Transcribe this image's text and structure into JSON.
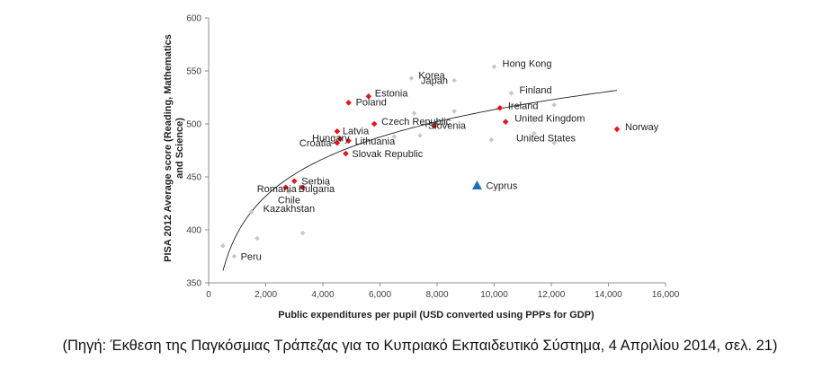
{
  "chart_data": {
    "type": "scatter",
    "xlabel": "Public expenditures per pupil (USD converted using PPPs for GDP)",
    "ylabel": "PISA 2012 Average score (Reading, Mathematics and Science)",
    "xlim": [
      0,
      16000
    ],
    "ylim": [
      350,
      600
    ],
    "xticks": [
      0,
      2000,
      4000,
      6000,
      8000,
      10000,
      12000,
      14000,
      16000
    ],
    "xtick_labels": [
      "0",
      "2,000",
      "4,000",
      "6,000",
      "8,000",
      "10,000",
      "12,000",
      "14,000",
      "16,000"
    ],
    "yticks": [
      350,
      400,
      450,
      500,
      550,
      600
    ],
    "ytick_labels": [
      "350",
      "400",
      "450",
      "500",
      "550",
      "600"
    ],
    "grid": false,
    "trendline": "logarithmic",
    "colors": {
      "highlight": "#e8151b",
      "other": "#c8c8c8",
      "cyprus": "#1f6fb5",
      "trend": "#222222"
    },
    "labeled_points": [
      {
        "label": "Hong Kong",
        "x": 10000,
        "y": 554,
        "kind": "other"
      },
      {
        "label": "Korea",
        "x": 7100,
        "y": 543,
        "kind": "other"
      },
      {
        "label": "Japan",
        "x": 8600,
        "y": 541,
        "kind": "other"
      },
      {
        "label": "Finland",
        "x": 10600,
        "y": 529,
        "kind": "other"
      },
      {
        "label": "Estonia",
        "x": 5600,
        "y": 526,
        "kind": "highlight"
      },
      {
        "label": "Poland",
        "x": 4900,
        "y": 520,
        "kind": "highlight"
      },
      {
        "label": "Ireland",
        "x": 10200,
        "y": 515,
        "kind": "highlight"
      },
      {
        "label": "Czech Republic",
        "x": 5800,
        "y": 500,
        "kind": "highlight"
      },
      {
        "label": "United Kingdom",
        "x": 10400,
        "y": 502,
        "kind": "highlight"
      },
      {
        "label": "Slovenia",
        "x": 7900,
        "y": 498,
        "kind": "highlight"
      },
      {
        "label": "Norway",
        "x": 14300,
        "y": 495,
        "kind": "highlight"
      },
      {
        "label": "United States",
        "x": 11400,
        "y": 491,
        "kind": "other"
      },
      {
        "label": "Latvia",
        "x": 4500,
        "y": 493,
        "kind": "highlight"
      },
      {
        "label": "Hungary",
        "x": 4600,
        "y": 486,
        "kind": "highlight"
      },
      {
        "label": "Lithuania",
        "x": 4900,
        "y": 484,
        "kind": "highlight"
      },
      {
        "label": "Croatia",
        "x": 4500,
        "y": 482,
        "kind": "highlight"
      },
      {
        "label": "Slovak Republic",
        "x": 4800,
        "y": 472,
        "kind": "highlight"
      },
      {
        "label": "Serbia",
        "x": 3000,
        "y": 446,
        "kind": "highlight"
      },
      {
        "label": "Romania",
        "x": 2700,
        "y": 440,
        "kind": "highlight"
      },
      {
        "label": "Bulgaria",
        "x": 3300,
        "y": 440,
        "kind": "highlight"
      },
      {
        "label": "Chile",
        "x": 2800,
        "y": 436,
        "kind": "other"
      },
      {
        "label": "Kazakhstan",
        "x": 1500,
        "y": 417,
        "kind": "other"
      },
      {
        "label": "Peru",
        "x": 900,
        "y": 375,
        "kind": "other"
      },
      {
        "label": "Cyprus",
        "x": 9400,
        "y": 442,
        "kind": "cyprus"
      }
    ],
    "unlabeled_points": [
      {
        "x": 500,
        "y": 385
      },
      {
        "x": 1700,
        "y": 392
      },
      {
        "x": 3300,
        "y": 397
      },
      {
        "x": 6500,
        "y": 488
      },
      {
        "x": 7200,
        "y": 510
      },
      {
        "x": 7400,
        "y": 489
      },
      {
        "x": 8600,
        "y": 512
      },
      {
        "x": 9900,
        "y": 485
      },
      {
        "x": 12100,
        "y": 482
      },
      {
        "x": 12100,
        "y": 518
      }
    ]
  },
  "caption": "(Πηγή: Έκθεση της Παγκόσμιας Τράπεζας για το Κυπριακό Εκπαιδευτικό Σύστημα, 4 Απριλίου 2014, σελ. 21)"
}
